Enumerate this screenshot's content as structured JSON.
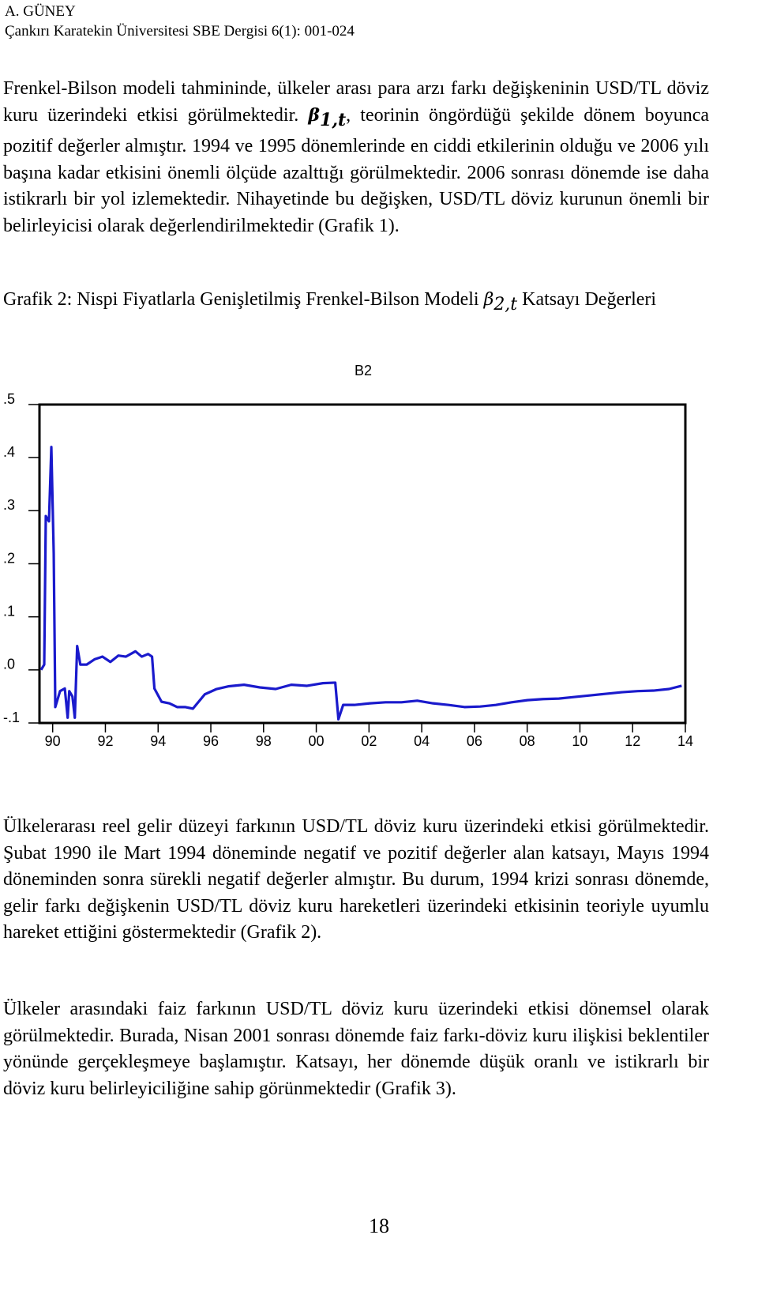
{
  "header": {
    "author": "A. GÜNEY",
    "journal": "Çankırı Karatekin Üniversitesi SBE Dergisi 6(1): 001-024"
  },
  "paragraphs": [
    {
      "before": "Frenkel-Bilson modeli tahmininde, ülkeler arası para arzı farkı değişkeninin USD/TL döviz kuru üzerindeki etkisi görülmektedir.",
      "symbol": "β",
      "subscript": "1,t",
      "after": ", teorinin öngördüğü şekilde dönem boyunca pozitif değerler almıştır. 1994 ve 1995 dönemlerinde en ciddi etkilerinin olduğu ve 2006 yılı başına kadar etkisini önemli ölçüde azalttığı görülmektedir. 2006 sonrası dönemde ise daha istikrarlı bir yol izlemektedir. Nihayetinde bu değişken, USD/TL döviz kurunun önemli bir belirleyicisi olarak değerlendirilmektedir (Grafik 1)."
    },
    "Ülkelerarası reel gelir düzeyi farkının USD/TL döviz kuru üzerindeki etkisi görülmektedir. Şubat 1990 ile Mart 1994 döneminde negatif ve pozitif değerler alan katsayı, Mayıs 1994 döneminden sonra sürekli negatif değerler almıştır. Bu durum, 1994 krizi sonrası dönemde, gelir farkı değişkenin USD/TL döviz kuru hareketleri üzerindeki etkisinin teoriyle uyumlu hareket ettiğini göstermektedir (Grafik 2).",
    "Ülkeler arasındaki faiz farkının USD/TL döviz kuru üzerindeki etkisi dönemsel olarak görülmektedir. Burada, Nisan 2001 sonrası dönemde faiz farkı-döviz kuru ilişkisi beklentiler yönünde gerçekleşmeye başlamıştır. Katsayı, her dönemde düşük oranlı ve istikrarlı bir döviz kuru belirleyiciliğine sahip görünmektedir (Grafik 3)."
  ],
  "caption": {
    "before": "Grafik 2: Nispi Fiyatlarla Genişletilmiş Frenkel-Bilson Modeli",
    "symbol": "β",
    "subscript": "2,t",
    "after": "Katsayı Değerleri"
  },
  "chart_data": {
    "type": "line",
    "title": "B2",
    "x": [
      1989.56,
      1989.68,
      1989.74,
      1989.86,
      1989.95,
      1990.04,
      1990.1,
      1990.28,
      1990.46,
      1990.57,
      1990.63,
      1990.75,
      1990.84,
      1990.93,
      1991.05,
      1991.29,
      1991.59,
      1991.89,
      1992.19,
      1992.49,
      1992.78,
      1993.14,
      1993.38,
      1993.62,
      1993.77,
      1993.86,
      1994.13,
      1994.43,
      1994.72,
      1995.02,
      1995.32,
      1995.77,
      1996.22,
      1996.66,
      1997.26,
      1997.86,
      1998.46,
      1999.05,
      1999.65,
      2000.25,
      2000.72,
      2000.84,
      2001.02,
      2001.44,
      2002.04,
      2002.63,
      2003.23,
      2003.83,
      2004.43,
      2005.02,
      2005.62,
      2006.22,
      2006.81,
      2007.41,
      2008.01,
      2008.6,
      2009.2,
      2009.8,
      2010.4,
      2010.99,
      2011.59,
      2012.19,
      2012.79,
      2013.38,
      2013.86
    ],
    "series": [
      {
        "name": "B2",
        "color": "#1a1acc",
        "values": [
          0.0,
          0.01,
          0.29,
          0.28,
          0.42,
          0.22,
          -0.07,
          -0.04,
          -0.035,
          -0.09,
          -0.04,
          -0.05,
          -0.09,
          0.045,
          0.01,
          0.01,
          0.02,
          0.025,
          0.015,
          0.027,
          0.025,
          0.035,
          0.025,
          0.03,
          0.025,
          -0.035,
          -0.06,
          -0.063,
          -0.07,
          -0.07,
          -0.073,
          -0.046,
          -0.036,
          -0.031,
          -0.028,
          -0.033,
          -0.036,
          -0.028,
          -0.03,
          -0.025,
          -0.024,
          -0.093,
          -0.066,
          -0.066,
          -0.063,
          -0.061,
          -0.061,
          -0.058,
          -0.063,
          -0.066,
          -0.07,
          -0.069,
          -0.066,
          -0.061,
          -0.057,
          -0.055,
          -0.054,
          -0.051,
          -0.048,
          -0.045,
          -0.042,
          -0.04,
          -0.039,
          -0.036,
          -0.03
        ]
      }
    ],
    "xlim": [
      1989.5,
      2014
    ],
    "xticks": [
      {
        "value": 1990,
        "label": "90"
      },
      {
        "value": 1992,
        "label": "92"
      },
      {
        "value": 1994,
        "label": "94"
      },
      {
        "value": 1996,
        "label": "96"
      },
      {
        "value": 1998,
        "label": "98"
      },
      {
        "value": 2000,
        "label": "00"
      },
      {
        "value": 2002,
        "label": "02"
      },
      {
        "value": 2004,
        "label": "04"
      },
      {
        "value": 2006,
        "label": "06"
      },
      {
        "value": 2008,
        "label": "08"
      },
      {
        "value": 2010,
        "label": "10"
      },
      {
        "value": 2012,
        "label": "12"
      },
      {
        "value": 2014,
        "label": "14"
      }
    ],
    "ylim": [
      -0.1,
      0.5
    ],
    "yticks": [
      {
        "value": -0.1,
        "label": "-.1"
      },
      {
        "value": 0,
        "label": ".0"
      },
      {
        "value": 0.1,
        "label": ".1"
      },
      {
        "value": 0.2,
        "label": ".2"
      },
      {
        "value": 0.3,
        "label": ".3"
      },
      {
        "value": 0.4,
        "label": ".4"
      },
      {
        "value": 0.5,
        "label": ".5"
      }
    ],
    "grid": false
  },
  "page_number": "18"
}
